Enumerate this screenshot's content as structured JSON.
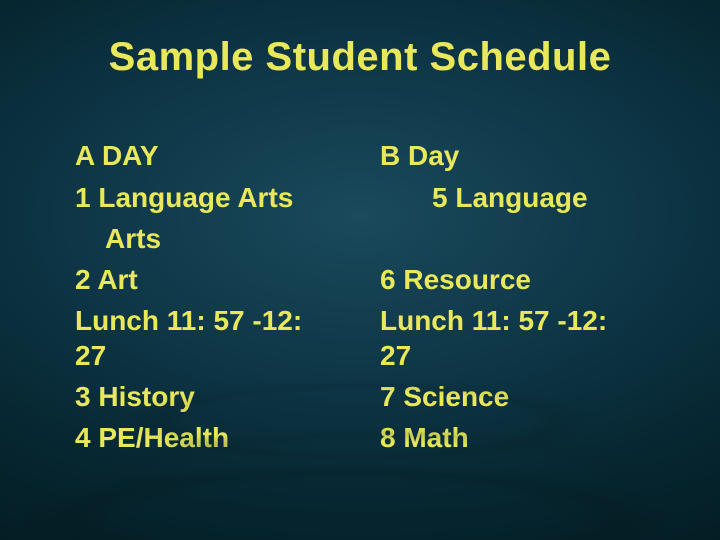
{
  "title": "Sample Student Schedule",
  "title_color": "#e8e85a",
  "title_fontsize": 40,
  "text_color": "#e8e85a",
  "body_fontsize": 28,
  "background_gradient": {
    "center": "#1a4a5c",
    "mid": "#0d3545",
    "edge": "#021318"
  },
  "columns": [
    {
      "heading": "A DAY",
      "items": [
        {
          "text": "1 Language Arts",
          "type": "normal"
        },
        {
          "text": "Arts",
          "type": "continuation"
        },
        {
          "text": "2 Art",
          "type": "normal"
        },
        {
          "text": "Lunch 11: 57 -12: 27",
          "type": "normal"
        },
        {
          "text": "3 History",
          "type": "normal"
        },
        {
          "text": "4 PE/Health",
          "type": "normal"
        }
      ]
    },
    {
      "heading": "B Day",
      "items": [
        {
          "text": "5 Language",
          "type": "indented"
        },
        {
          "text": " ",
          "type": "normal"
        },
        {
          "text": "6 Resource",
          "type": "normal"
        },
        {
          "text": "Lunch 11: 57 -12: 27",
          "type": "normal"
        },
        {
          "text": "7 Science",
          "type": "normal"
        },
        {
          "text": "8 Math",
          "type": "normal"
        }
      ]
    }
  ]
}
